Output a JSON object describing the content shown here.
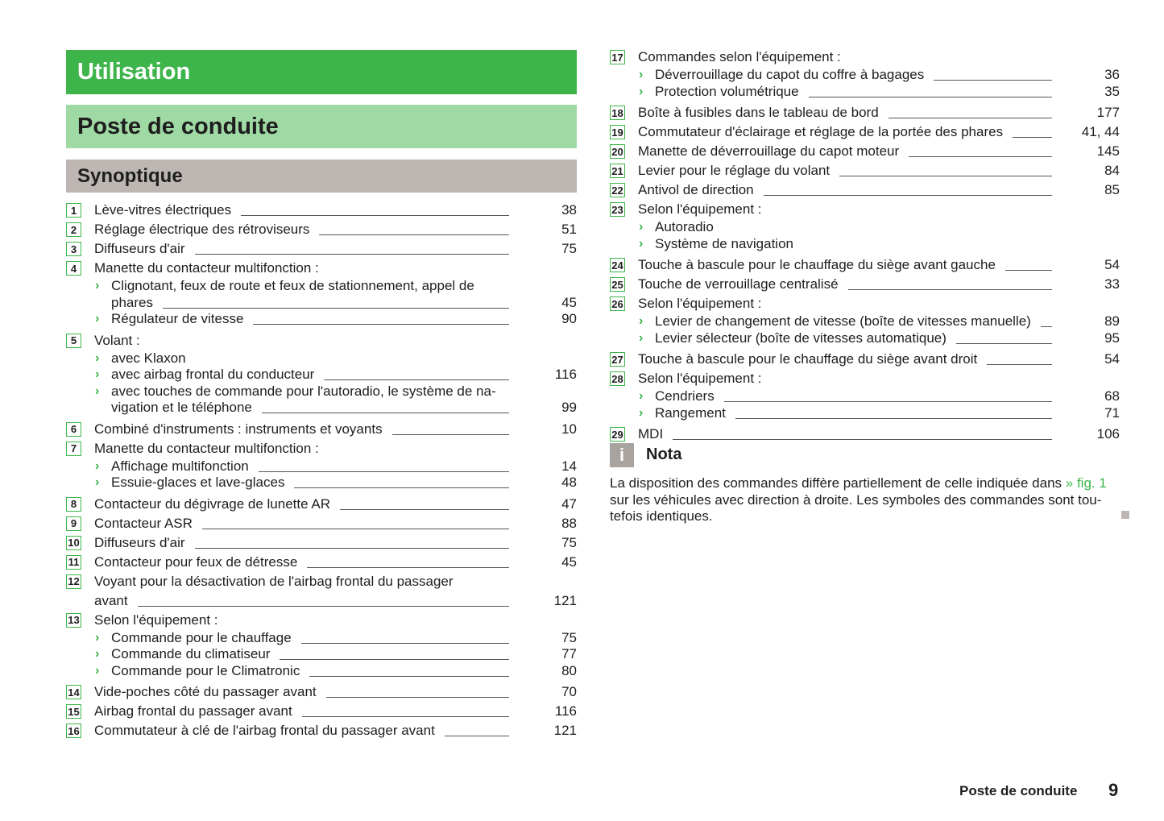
{
  "headers": {
    "chapter": "Utilisation",
    "section": "Poste de conduite",
    "subsection": "Synoptique"
  },
  "colors": {
    "accent": "#3db54a",
    "section_bg": "#9fd9a4",
    "subsection_bg": "#bdb6b3",
    "nota_icon": "#a8a39f"
  },
  "left_items": [
    {
      "num": "1",
      "lines": [
        "Lève-vitres électriques"
      ],
      "page": "38"
    },
    {
      "num": "2",
      "lines": [
        "Réglage électrique des rétroviseurs"
      ],
      "page": "51"
    },
    {
      "num": "3",
      "lines": [
        "Diffuseurs d'air"
      ],
      "page": "75"
    },
    {
      "num": "4",
      "lines": [
        "Manette du contacteur multifonction :"
      ],
      "sub": [
        {
          "lines": [
            "Clignotant, feux de route et feux de stationnement, appel de",
            "phares"
          ],
          "page": "45"
        },
        {
          "lines": [
            "Régulateur de vitesse"
          ],
          "page": "90"
        }
      ]
    },
    {
      "num": "5",
      "lines": [
        "Volant :"
      ],
      "sub": [
        {
          "lines": [
            "avec Klaxon"
          ]
        },
        {
          "lines": [
            "avec airbag frontal du conducteur"
          ],
          "page": "116"
        },
        {
          "lines": [
            "avec touches de commande pour l'autoradio, le système de na-",
            "vigation et le téléphone"
          ],
          "page": "99"
        }
      ]
    },
    {
      "num": "6",
      "lines": [
        "Combiné d'instruments : instruments et voyants"
      ],
      "page": "10"
    },
    {
      "num": "7",
      "lines": [
        "Manette du contacteur multifonction :"
      ],
      "sub": [
        {
          "lines": [
            "Affichage multifonction"
          ],
          "page": "14"
        },
        {
          "lines": [
            "Essuie-glaces et lave-glaces"
          ],
          "page": "48"
        }
      ]
    },
    {
      "num": "8",
      "lines": [
        "Contacteur du dégivrage de lunette AR"
      ],
      "page": "47"
    },
    {
      "num": "9",
      "lines": [
        "Contacteur ASR"
      ],
      "page": "88"
    },
    {
      "num": "10",
      "lines": [
        "Diffuseurs d'air"
      ],
      "page": "75"
    },
    {
      "num": "11",
      "lines": [
        "Contacteur pour feux de détresse"
      ],
      "page": "45"
    },
    {
      "num": "12",
      "lines": [
        "Voyant pour la désactivation de l'airbag frontal du passager",
        "avant"
      ],
      "page": "121"
    },
    {
      "num": "13",
      "lines": [
        "Selon l'équipement :"
      ],
      "sub": [
        {
          "lines": [
            "Commande pour le chauffage"
          ],
          "page": "75"
        },
        {
          "lines": [
            "Commande du climatiseur"
          ],
          "page": "77"
        },
        {
          "lines": [
            "Commande pour le Climatronic"
          ],
          "page": "80"
        }
      ]
    },
    {
      "num": "14",
      "lines": [
        "Vide-poches côté du passager avant"
      ],
      "page": "70"
    },
    {
      "num": "15",
      "lines": [
        "Airbag frontal du passager avant"
      ],
      "page": "116"
    },
    {
      "num": "16",
      "lines": [
        "Commutateur à clé de l'airbag frontal du passager avant"
      ],
      "page": "121"
    }
  ],
  "right_items": [
    {
      "num": "17",
      "lines": [
        "Commandes selon l'équipement :"
      ],
      "sub": [
        {
          "lines": [
            "Déverrouillage du capot du coffre à bagages"
          ],
          "page": "36"
        },
        {
          "lines": [
            "Protection volumétrique"
          ],
          "page": "35"
        }
      ]
    },
    {
      "num": "18",
      "lines": [
        "Boîte à fusibles dans le tableau de bord"
      ],
      "page": "177"
    },
    {
      "num": "19",
      "lines": [
        "Commutateur d'éclairage et réglage de la portée des phares"
      ],
      "page": "41, 44"
    },
    {
      "num": "20",
      "lines": [
        "Manette de déverrouillage du capot moteur"
      ],
      "page": "145"
    },
    {
      "num": "21",
      "lines": [
        "Levier pour le réglage du volant"
      ],
      "page": "84"
    },
    {
      "num": "22",
      "lines": [
        "Antivol de direction"
      ],
      "page": "85"
    },
    {
      "num": "23",
      "lines": [
        "Selon l'équipement :"
      ],
      "sub": [
        {
          "lines": [
            "Autoradio"
          ]
        },
        {
          "lines": [
            "Système de navigation"
          ]
        }
      ]
    },
    {
      "num": "24",
      "lines": [
        "Touche à bascule pour le chauffage du siège avant gauche"
      ],
      "page": "54"
    },
    {
      "num": "25",
      "lines": [
        "Touche de verrouillage centralisé"
      ],
      "page": "33"
    },
    {
      "num": "26",
      "lines": [
        "Selon l'équipement :"
      ],
      "sub": [
        {
          "lines": [
            "Levier de changement de vitesse (boîte de vitesses manuelle)"
          ],
          "page": "89"
        },
        {
          "lines": [
            "Levier sélecteur (boîte de vitesses automatique)"
          ],
          "page": "95"
        }
      ]
    },
    {
      "num": "27",
      "lines": [
        "Touche à bascule pour le chauffage du siège avant droit"
      ],
      "page": "54"
    },
    {
      "num": "28",
      "lines": [
        "Selon l'équipement :"
      ],
      "sub": [
        {
          "lines": [
            "Cendriers"
          ],
          "page": "68"
        },
        {
          "lines": [
            "Rangement"
          ],
          "page": "71"
        }
      ]
    },
    {
      "num": "29",
      "lines": [
        "MDI"
      ],
      "page": "106"
    }
  ],
  "nota": {
    "icon": "info-icon",
    "icon_glyph": "i",
    "title": "Nota",
    "text_before": "La disposition des commandes diffère partiellement de celle indiquée dans ",
    "link": "» fig. 1",
    "text_after": " sur les véhicules avec direction à droite. Les symboles des commandes sont tou-tefois identiques."
  },
  "footer": {
    "section": "Poste de conduite",
    "page_number": "9"
  }
}
